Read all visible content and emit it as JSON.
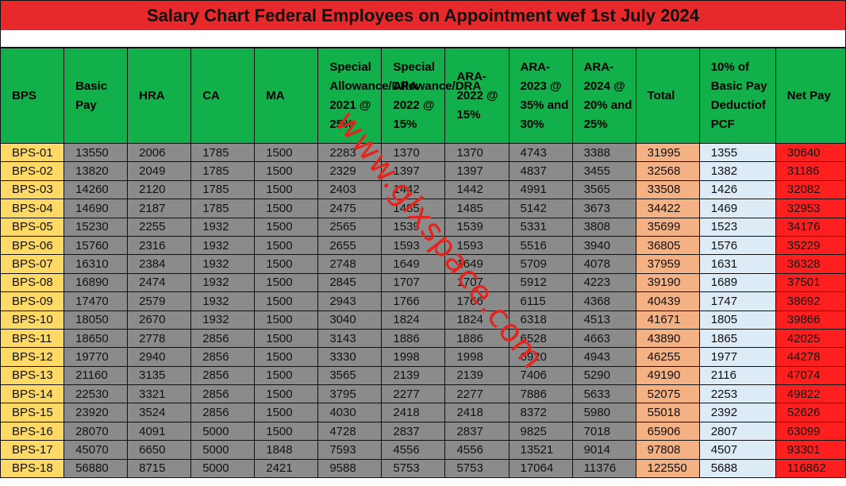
{
  "title": "Salary Chart Federal Employees on Appointment wef 1st July 2024",
  "watermark": "www.glxspace.com",
  "colors": {
    "title_bg": "#e8292b",
    "header_bg": "#12b04a",
    "bps_col": "#ffd966",
    "data_cells": "#8b8b8b",
    "total_col": "#f4b183",
    "pcf_col": "#ddebf7",
    "net_col": "#ff1f1f"
  },
  "headers": [
    "BPS",
    "Basic Pay",
    "HRA",
    "CA",
    "MA",
    "Special Allowance/DRA 2021 @ 25%",
    "Special Allowance/DRA 2022 @ 15%",
    "ARA-2022 @ 15%",
    "ARA-2023 @ 35% and 30%",
    "ARA-2024 @ 20% and 25%",
    "Total",
    "10% of Basic Pay Deductiof PCF",
    "Net Pay"
  ],
  "rows": [
    [
      "BPS-01",
      "13550",
      "2006",
      "1785",
      "1500",
      "2283",
      "1370",
      "1370",
      "4743",
      "3388",
      "31995",
      "1355",
      "30640"
    ],
    [
      "BPS-02",
      "13820",
      "2049",
      "1785",
      "1500",
      "2329",
      "1397",
      "1397",
      "4837",
      "3455",
      "32568",
      "1382",
      "31186"
    ],
    [
      "BPS-03",
      "14260",
      "2120",
      "1785",
      "1500",
      "2403",
      "1442",
      "1442",
      "4991",
      "3565",
      "33508",
      "1426",
      "32082"
    ],
    [
      "BPS-04",
      "14690",
      "2187",
      "1785",
      "1500",
      "2475",
      "1485",
      "1485",
      "5142",
      "3673",
      "34422",
      "1469",
      "32953"
    ],
    [
      "BPS-05",
      "15230",
      "2255",
      "1932",
      "1500",
      "2565",
      "1539",
      "1539",
      "5331",
      "3808",
      "35699",
      "1523",
      "34176"
    ],
    [
      "BPS-06",
      "15760",
      "2316",
      "1932",
      "1500",
      "2655",
      "1593",
      "1593",
      "5516",
      "3940",
      "36805",
      "1576",
      "35229"
    ],
    [
      "BPS-07",
      "16310",
      "2384",
      "1932",
      "1500",
      "2748",
      "1649",
      "1649",
      "5709",
      "4078",
      "37959",
      "1631",
      "36328"
    ],
    [
      "BPS-08",
      "16890",
      "2474",
      "1932",
      "1500",
      "2845",
      "1707",
      "1707",
      "5912",
      "4223",
      "39190",
      "1689",
      "37501"
    ],
    [
      "BPS-09",
      "17470",
      "2579",
      "1932",
      "1500",
      "2943",
      "1766",
      "1766",
      "6115",
      "4368",
      "40439",
      "1747",
      "38692"
    ],
    [
      "BPS-10",
      "18050",
      "2670",
      "1932",
      "1500",
      "3040",
      "1824",
      "1824",
      "6318",
      "4513",
      "41671",
      "1805",
      "39866"
    ],
    [
      "BPS-11",
      "18650",
      "2778",
      "2856",
      "1500",
      "3143",
      "1886",
      "1886",
      "6528",
      "4663",
      "43890",
      "1865",
      "42025"
    ],
    [
      "BPS-12",
      "19770",
      "2940",
      "2856",
      "1500",
      "3330",
      "1998",
      "1998",
      "6920",
      "4943",
      "46255",
      "1977",
      "44278"
    ],
    [
      "BPS-13",
      "21160",
      "3135",
      "2856",
      "1500",
      "3565",
      "2139",
      "2139",
      "7406",
      "5290",
      "49190",
      "2116",
      "47074"
    ],
    [
      "BPS-14",
      "22530",
      "3321",
      "2856",
      "1500",
      "3795",
      "2277",
      "2277",
      "7886",
      "5633",
      "52075",
      "2253",
      "49822"
    ],
    [
      "BPS-15",
      "23920",
      "3524",
      "2856",
      "1500",
      "4030",
      "2418",
      "2418",
      "8372",
      "5980",
      "55018",
      "2392",
      "52626"
    ],
    [
      "BPS-16",
      "28070",
      "4091",
      "5000",
      "1500",
      "4728",
      "2837",
      "2837",
      "9825",
      "7018",
      "65906",
      "2807",
      "63099"
    ],
    [
      "BPS-17",
      "45070",
      "6650",
      "5000",
      "1848",
      "7593",
      "4556",
      "4556",
      "13521",
      "9014",
      "97808",
      "4507",
      "93301"
    ],
    [
      "BPS-18",
      "56880",
      "8715",
      "5000",
      "2421",
      "9588",
      "5753",
      "5753",
      "17064",
      "11376",
      "122550",
      "5688",
      "116862"
    ]
  ]
}
